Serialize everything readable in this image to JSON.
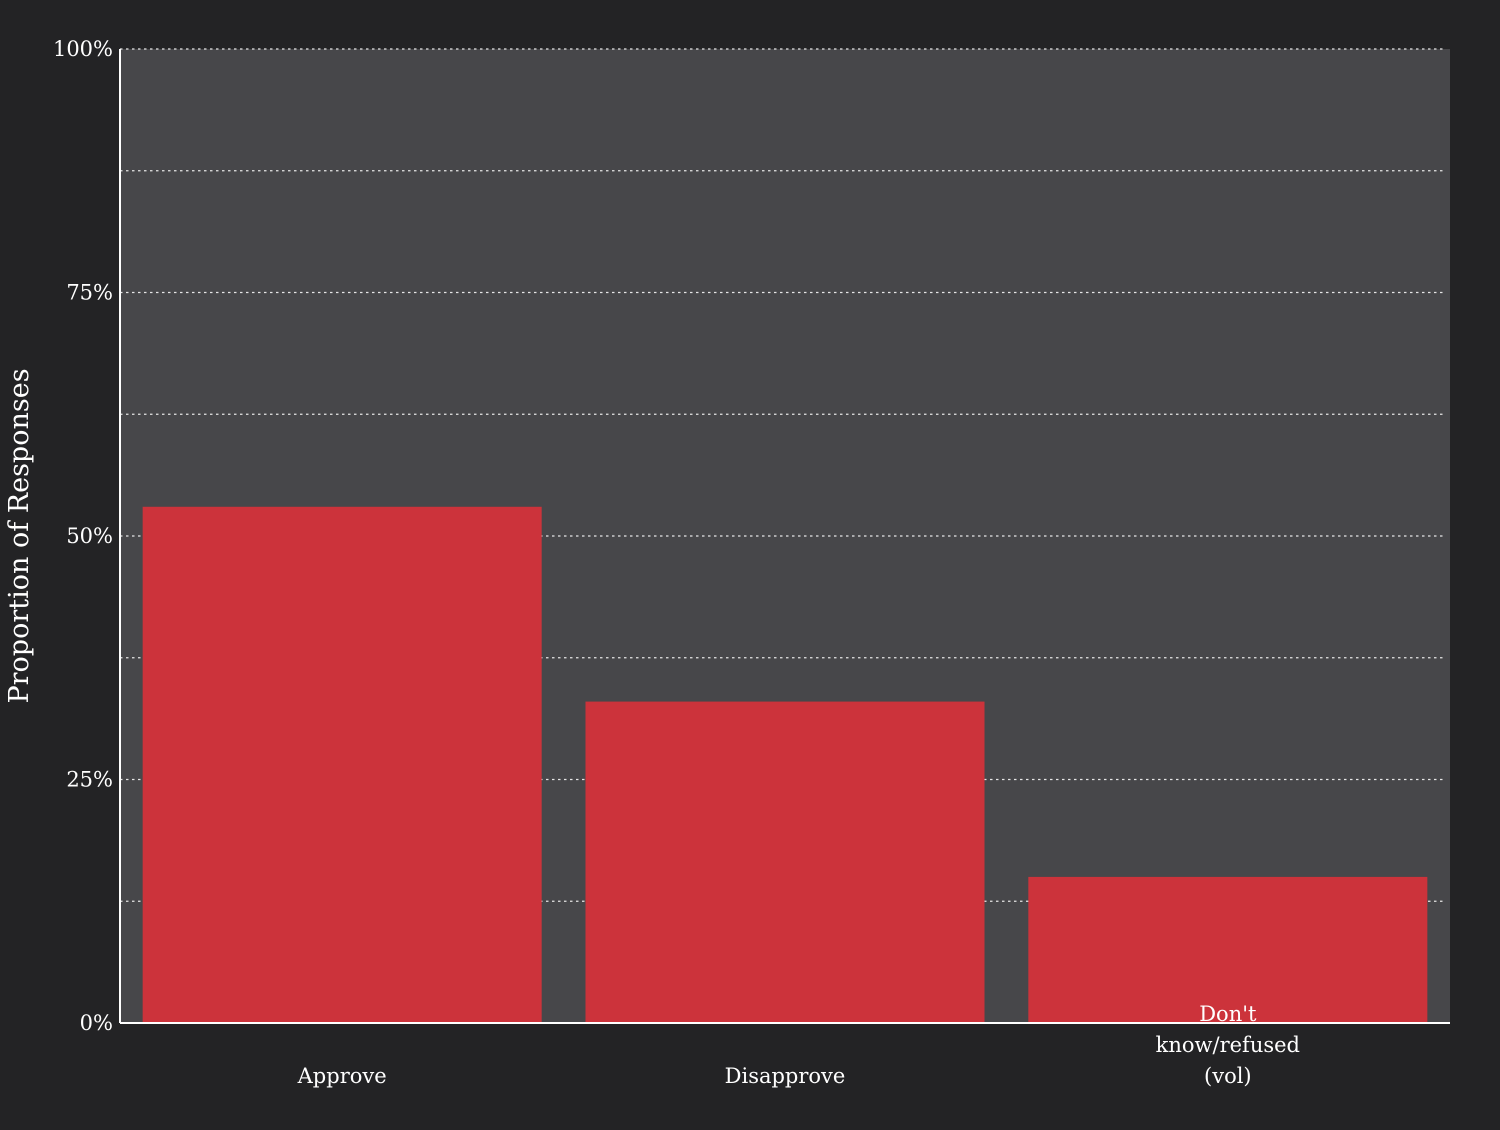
{
  "colors": {
    "background": "#232325",
    "plot_background": "#47474a",
    "bar": "#cc333b",
    "text": "#ffffff",
    "grid": "#e6e6e6"
  },
  "chart_data": {
    "type": "bar",
    "title": "",
    "xlabel": "",
    "ylabel": "Proportion of Responses",
    "categories": [
      [
        "Approve"
      ],
      [
        "Disapprove"
      ],
      [
        "Don't",
        "know/refused",
        "(vol)"
      ]
    ],
    "values": [
      0.53,
      0.33,
      0.15
    ],
    "ylim": [
      0,
      1
    ],
    "yticks": [
      0,
      0.25,
      0.5,
      0.75,
      1.0
    ],
    "ytick_labels": [
      "0%",
      "25%",
      "50%",
      "75%",
      "100%"
    ],
    "minor_gridlines": [
      0.125,
      0.375,
      0.625,
      0.875
    ],
    "grid": true,
    "grid_style": "dotted",
    "legend": "none"
  }
}
